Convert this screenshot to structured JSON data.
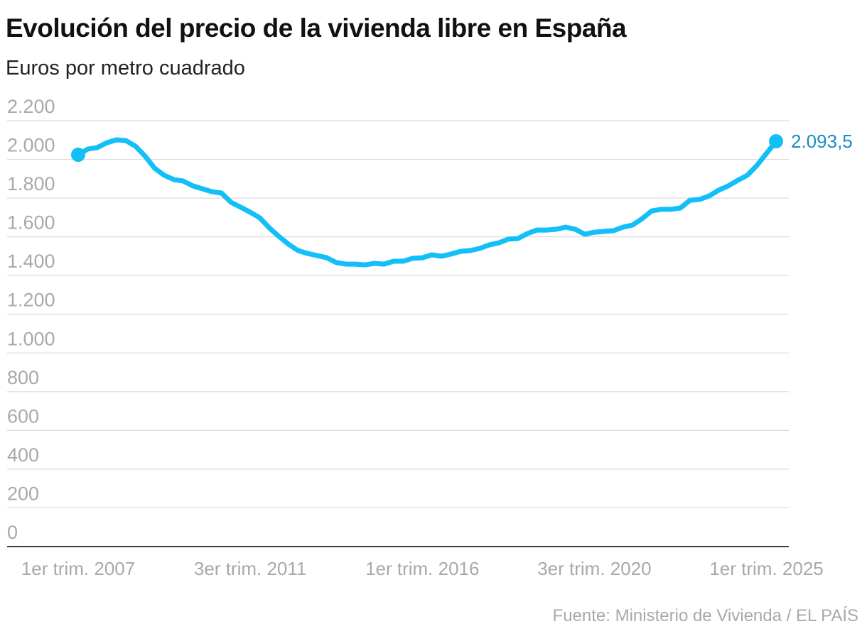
{
  "chart_data": {
    "type": "line",
    "title": "Evolución del precio de la vivienda libre en España",
    "subtitle": "Euros por metro cuadrado",
    "source": "Fuente: Ministerio de Vivienda / EL PAÍS",
    "categories": [
      "1er trim. 2007",
      null,
      null,
      null,
      null,
      null,
      null,
      null,
      null,
      null,
      null,
      null,
      null,
      null,
      null,
      null,
      null,
      null,
      "3er trim. 2011",
      null,
      null,
      null,
      null,
      null,
      null,
      null,
      null,
      null,
      null,
      null,
      null,
      null,
      null,
      null,
      null,
      null,
      "1er trim. 2016",
      null,
      null,
      null,
      null,
      null,
      null,
      null,
      null,
      null,
      null,
      null,
      null,
      null,
      null,
      null,
      null,
      null,
      "3er trim. 2020",
      null,
      null,
      null,
      null,
      null,
      null,
      null,
      null,
      null,
      null,
      null,
      null,
      null,
      null,
      null,
      null,
      null,
      "1er trim. 2025",
      null
    ],
    "series": [
      {
        "color": "#13bff7",
        "values": [
          2024,
          2053,
          2061,
          2086,
          2101,
          2097,
          2068,
          2017,
          1954,
          1918,
          1896,
          1888,
          1863,
          1848,
          1833,
          1826,
          1778,
          1753,
          1727,
          1698,
          1646,
          1602,
          1562,
          1529,
          1514,
          1503,
          1492,
          1467,
          1459,
          1459,
          1455,
          1463,
          1459,
          1474,
          1474,
          1489,
          1492,
          1507,
          1500,
          1511,
          1525,
          1529,
          1540,
          1558,
          1569,
          1588,
          1591,
          1617,
          1635,
          1635,
          1639,
          1650,
          1639,
          1613,
          1624,
          1628,
          1632,
          1650,
          1661,
          1694,
          1734,
          1742,
          1742,
          1749,
          1789,
          1793,
          1811,
          1841,
          1863,
          1892,
          1918,
          1969,
          2031,
          2093.5
        ],
        "value_labels": [
          null,
          null,
          null,
          null,
          null,
          null,
          null,
          null,
          null,
          null,
          null,
          null,
          null,
          null,
          null,
          null,
          null,
          null,
          null,
          null,
          null,
          null,
          null,
          null,
          null,
          null,
          null,
          null,
          null,
          null,
          null,
          null,
          null,
          null,
          null,
          null,
          null,
          null,
          null,
          null,
          null,
          null,
          null,
          null,
          null,
          null,
          null,
          null,
          null,
          null,
          null,
          null,
          null,
          null,
          null,
          null,
          null,
          null,
          null,
          null,
          null,
          null,
          null,
          null,
          null,
          null,
          null,
          null,
          null,
          null,
          null,
          null,
          null,
          "2.093,5"
        ]
      }
    ],
    "ylim": [
      0,
      2200
    ],
    "yticks": [
      0,
      200,
      400,
      600,
      800,
      {
        "value": 1000,
        "label": "1.000"
      },
      {
        "value": 1200,
        "label": "1.200"
      },
      {
        "value": 1400,
        "label": "1.400"
      },
      {
        "value": 1600,
        "label": "1.600"
      },
      {
        "value": 1800,
        "label": "1.800"
      },
      {
        "value": 2000,
        "label": "2.000"
      },
      {
        "value": 2200,
        "label": "2.200"
      }
    ],
    "grid": true
  }
}
